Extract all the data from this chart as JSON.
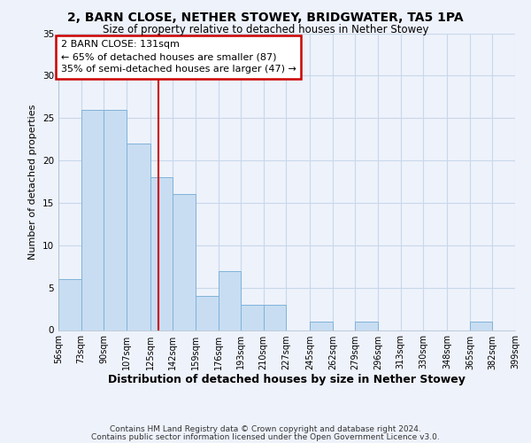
{
  "title": "2, BARN CLOSE, NETHER STOWEY, BRIDGWATER, TA5 1PA",
  "subtitle": "Size of property relative to detached houses in Nether Stowey",
  "xlabel": "Distribution of detached houses by size in Nether Stowey",
  "ylabel": "Number of detached properties",
  "bar_edges": [
    56,
    73,
    90,
    107,
    125,
    142,
    159,
    176,
    193,
    210,
    227,
    245,
    262,
    279,
    296,
    313,
    330,
    348,
    365,
    382,
    399
  ],
  "bar_heights": [
    6,
    26,
    26,
    22,
    18,
    16,
    4,
    7,
    3,
    3,
    0,
    1,
    0,
    1,
    0,
    0,
    0,
    0,
    1,
    0
  ],
  "tick_labels": [
    "56sqm",
    "73sqm",
    "90sqm",
    "107sqm",
    "125sqm",
    "142sqm",
    "159sqm",
    "176sqm",
    "193sqm",
    "210sqm",
    "227sqm",
    "245sqm",
    "262sqm",
    "279sqm",
    "296sqm",
    "313sqm",
    "330sqm",
    "348sqm",
    "365sqm",
    "382sqm",
    "399sqm"
  ],
  "bar_color": "#c8ddf2",
  "bar_edge_color": "#7fb3d9",
  "vline_x": 131,
  "vline_color": "#cc0000",
  "annotation_line1": "2 BARN CLOSE: 131sqm",
  "annotation_line2": "← 65% of detached houses are smaller (87)",
  "annotation_line3": "35% of semi-detached houses are larger (47) →",
  "annotation_box_color": "#cc0000",
  "ylim": [
    0,
    35
  ],
  "yticks": [
    0,
    5,
    10,
    15,
    20,
    25,
    30,
    35
  ],
  "grid_color": "#c8d8ea",
  "background_color": "#eef2fb",
  "footer1": "Contains HM Land Registry data © Crown copyright and database right 2024.",
  "footer2": "Contains public sector information licensed under the Open Government Licence v3.0."
}
